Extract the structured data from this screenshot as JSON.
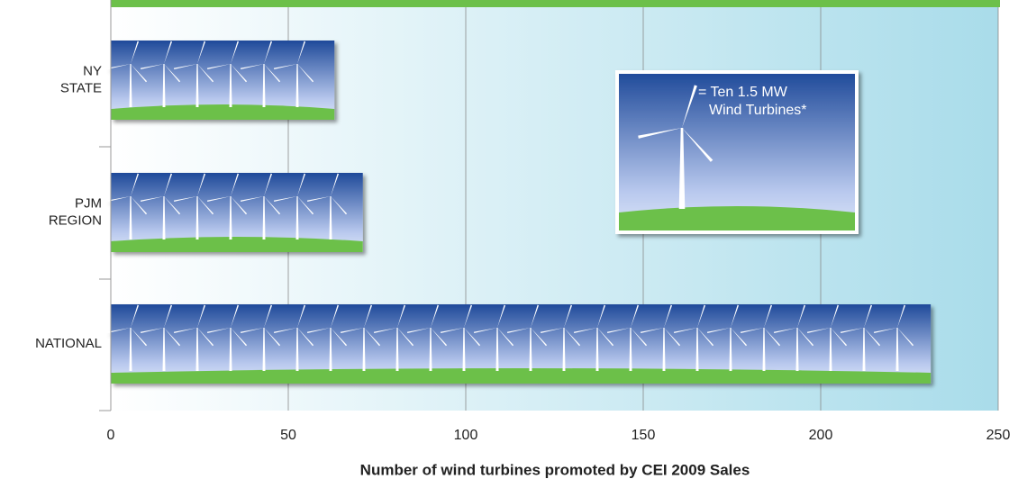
{
  "chart_data": {
    "type": "bar",
    "orientation": "horizontal",
    "categories": [
      "NY\nSTATE",
      "PJM\nREGION",
      "NATIONAL"
    ],
    "values": [
      63,
      71,
      231
    ],
    "xlabel": "Number of wind turbines promoted by CEI 2009 Sales",
    "xlim": [
      0,
      250
    ],
    "xticks": [
      0,
      50,
      100,
      150,
      200,
      250
    ],
    "grid": true,
    "annotation": "= Ten 1.5 MW\nWind Turbines*"
  }
}
